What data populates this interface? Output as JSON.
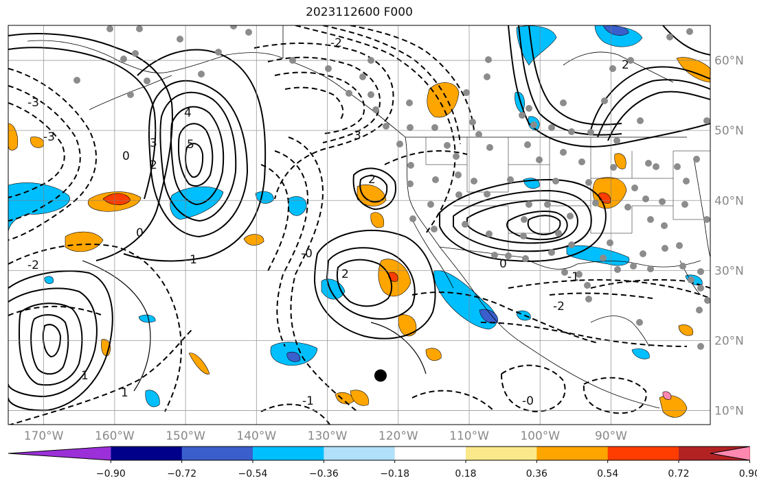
{
  "title": "2023112600 F000",
  "map": {
    "lon_range": [
      -175,
      -76
    ],
    "lat_range": [
      8,
      65
    ],
    "lon_ticks": [
      {
        "value": -170,
        "label": "170°W"
      },
      {
        "value": -160,
        "label": "160°W"
      },
      {
        "value": -150,
        "label": "150°W"
      },
      {
        "value": -140,
        "label": "140°W"
      },
      {
        "value": -130,
        "label": "130°W"
      },
      {
        "value": -120,
        "label": "120°W"
      },
      {
        "value": -110,
        "label": "110°W"
      },
      {
        "value": -100,
        "label": "100°W"
      },
      {
        "value": -90,
        "label": "90°W"
      }
    ],
    "lat_ticks": [
      {
        "value": 60,
        "label": "60°N"
      },
      {
        "value": 50,
        "label": "50°N"
      },
      {
        "value": 40,
        "label": "40°N"
      },
      {
        "value": 30,
        "label": "30°N"
      },
      {
        "value": 20,
        "label": "20°N"
      },
      {
        "value": 10,
        "label": "10°N"
      }
    ],
    "grid": true,
    "marker": {
      "lon": -122.5,
      "lat": 15.0,
      "color": "#000000"
    }
  },
  "colorbar": {
    "extend": "both",
    "tick_labels": [
      "−0.90",
      "−0.72",
      "−0.54",
      "−0.36",
      "−0.18",
      "0.18",
      "0.36",
      "0.54",
      "0.72",
      "0.90"
    ],
    "colors": [
      "#9b30d9",
      "#00008b",
      "#3a5fcd",
      "#00bfff",
      "#b0e0fa",
      "#ffffff",
      "#fbe88a",
      "#ffa500",
      "#ff3d00",
      "#b22222",
      "#ff88b0"
    ]
  },
  "contour_labels": [
    "2",
    "3",
    "4",
    "5",
    "0",
    "-1",
    "-2",
    "-3",
    "0",
    "-0",
    "1",
    "2",
    "3",
    "0",
    "-2",
    "-0",
    "-1",
    "2",
    "-3",
    "-2",
    "1",
    "2",
    "-1"
  ]
}
